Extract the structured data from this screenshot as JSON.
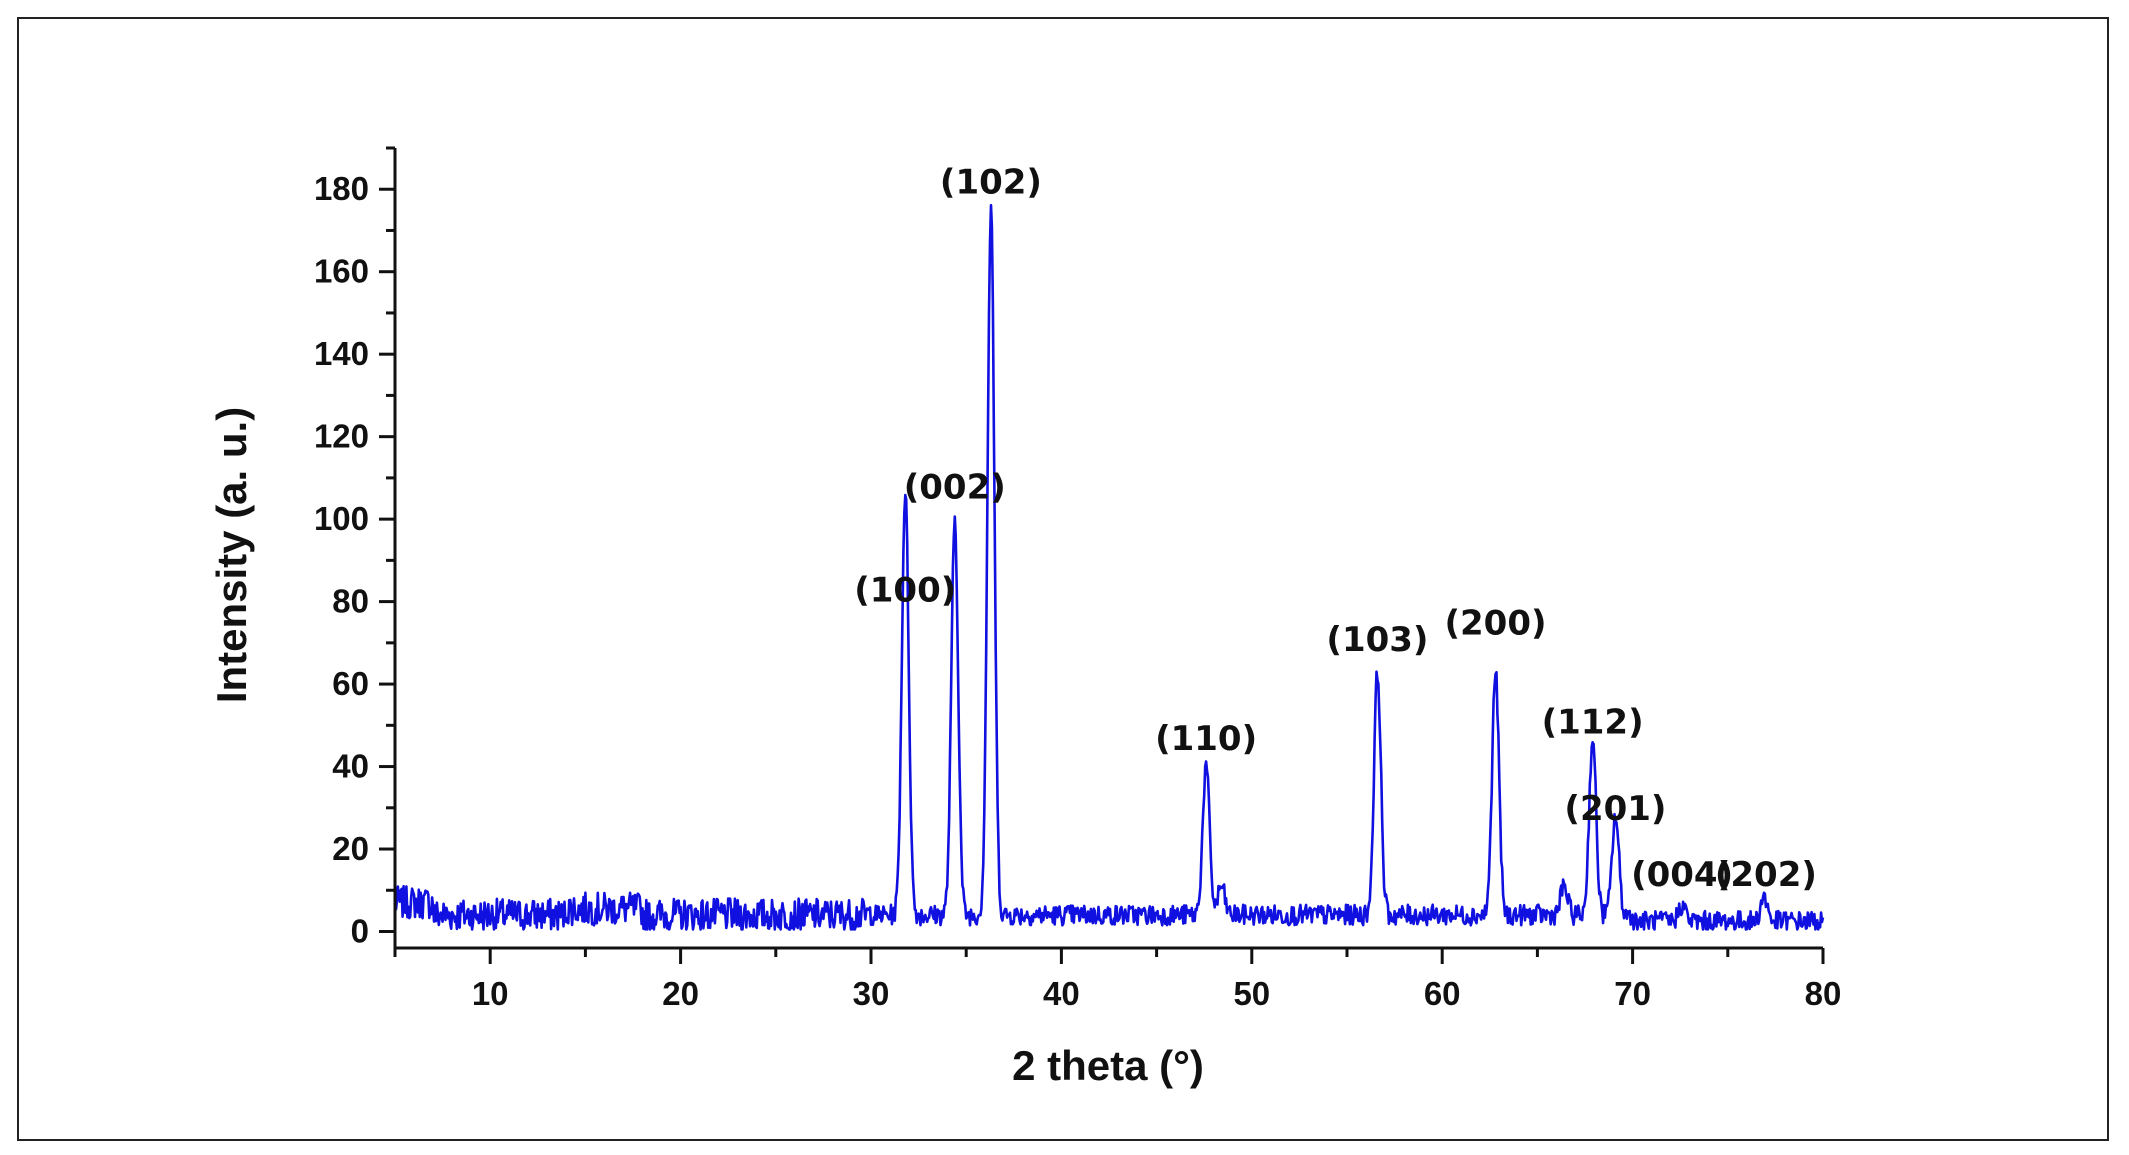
{
  "chart_data": {
    "type": "line",
    "title": "",
    "xlabel": "2 theta (°)",
    "ylabel": "Intensity (a. u.)",
    "xlim": [
      5,
      80
    ],
    "ylim": [
      -4,
      190
    ],
    "xticks": [
      10,
      20,
      30,
      40,
      50,
      60,
      70,
      80
    ],
    "yticks": [
      0,
      20,
      40,
      60,
      80,
      100,
      120,
      140,
      160,
      180
    ],
    "grid": false,
    "legend": "none",
    "line_color": "#1010e0",
    "baseline": 4,
    "series": [
      {
        "name": "",
        "peaks": [
          {
            "x": 31.8,
            "y": 107
          },
          {
            "x": 34.4,
            "y": 100
          },
          {
            "x": 36.3,
            "y": 175
          },
          {
            "x": 47.6,
            "y": 40
          },
          {
            "x": 48.4,
            "y": 11
          },
          {
            "x": 56.6,
            "y": 63
          },
          {
            "x": 62.8,
            "y": 63
          },
          {
            "x": 66.4,
            "y": 11
          },
          {
            "x": 67.9,
            "y": 47
          },
          {
            "x": 69.1,
            "y": 28
          },
          {
            "x": 72.6,
            "y": 8
          },
          {
            "x": 76.9,
            "y": 10
          }
        ]
      }
    ],
    "annotations": [
      {
        "text": "(100)",
        "x": 31.8,
        "y": 80
      },
      {
        "text": "(002)",
        "x": 34.4,
        "y": 105
      },
      {
        "text": "(102)",
        "x": 36.3,
        "y": 179
      },
      {
        "text": "(110)",
        "x": 47.6,
        "y": 44
      },
      {
        "text": "(103)",
        "x": 56.6,
        "y": 68
      },
      {
        "text": "(200)",
        "x": 62.8,
        "y": 72
      },
      {
        "text": "(112)",
        "x": 67.9,
        "y": 48
      },
      {
        "text": "(201)",
        "x": 69.1,
        "y": 27
      },
      {
        "text": "(004)",
        "x": 72.6,
        "y": 11
      },
      {
        "text": "(202)",
        "x": 77.0,
        "y": 11
      }
    ]
  }
}
